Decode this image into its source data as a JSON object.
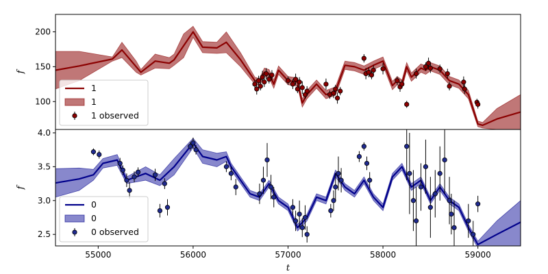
{
  "chart_data": [
    {
      "type": "line",
      "panel": "top",
      "ylabel": "f",
      "xlabel": "",
      "xlim": [
        54550,
        59450
      ],
      "ylim": [
        60,
        225
      ],
      "yticks": [
        100,
        150,
        200
      ],
      "legend_position": "lower-left",
      "colors": {
        "line": "#8b0000",
        "band": "#b05555",
        "points": "#8b0000"
      },
      "legend": [
        "1",
        "1",
        "1 observed"
      ],
      "series": [
        {
          "name": "1",
          "kind": "model",
          "x": [
            54550,
            54800,
            55150,
            55250,
            55400,
            55450,
            55600,
            55750,
            55800,
            55900,
            56000,
            56100,
            56250,
            56350,
            56500,
            56650,
            56700,
            56750,
            56800,
            56850,
            56900,
            57000,
            57100,
            57150,
            57200,
            57300,
            57400,
            57500,
            57600,
            57700,
            57800,
            57900,
            58000,
            58100,
            58150,
            58200,
            58250,
            58300,
            58400,
            58450,
            58500,
            58600,
            58700,
            58800,
            58900,
            59000,
            59050,
            59200,
            59450
          ],
          "y": [
            145,
            151,
            161,
            174,
            150,
            142,
            158,
            155,
            160,
            180,
            200,
            178,
            177,
            185,
            160,
            130,
            128,
            142,
            140,
            125,
            145,
            130,
            128,
            98,
            110,
            125,
            110,
            115,
            152,
            150,
            145,
            152,
            158,
            123,
            130,
            125,
            150,
            135,
            148,
            145,
            150,
            145,
            130,
            125,
            110,
            68,
            66,
            75,
            85
          ]
        },
        {
          "name": "1",
          "kind": "band",
          "x": [
            54550,
            54800,
            55150,
            55250,
            55400,
            55450,
            55600,
            55750,
            55800,
            55900,
            56000,
            56100,
            56250,
            56350,
            56500,
            56650,
            56700,
            56750,
            56800,
            56850,
            56900,
            57000,
            57100,
            57150,
            57200,
            57300,
            57400,
            57500,
            57600,
            57700,
            57800,
            57900,
            58000,
            58100,
            58150,
            58200,
            58250,
            58300,
            58400,
            58450,
            58500,
            58600,
            58700,
            58800,
            58900,
            59000,
            59050,
            59200,
            59450
          ],
          "lower": [
            118,
            130,
            158,
            163,
            142,
            138,
            148,
            147,
            152,
            163,
            192,
            170,
            169,
            170,
            150,
            125,
            123,
            136,
            134,
            119,
            139,
            124,
            122,
            92,
            104,
            119,
            104,
            109,
            146,
            144,
            139,
            146,
            152,
            117,
            124,
            119,
            144,
            129,
            142,
            139,
            144,
            139,
            124,
            119,
            104,
            64,
            62,
            60,
            60
          ],
          "upper": [
            172,
            172,
            164,
            185,
            158,
            146,
            168,
            163,
            168,
            197,
            208,
            186,
            185,
            200,
            170,
            135,
            133,
            148,
            146,
            131,
            151,
            136,
            134,
            104,
            116,
            131,
            116,
            121,
            158,
            156,
            151,
            158,
            164,
            129,
            136,
            131,
            156,
            141,
            154,
            151,
            156,
            151,
            136,
            131,
            116,
            72,
            70,
            90,
            110
          ]
        },
        {
          "name": "1 observed",
          "kind": "observed",
          "x": [
            56650,
            56670,
            56690,
            56710,
            56730,
            56750,
            56770,
            56800,
            56830,
            57000,
            57050,
            57080,
            57100,
            57120,
            57150,
            57180,
            57200,
            57400,
            57440,
            57480,
            57500,
            57520,
            57550,
            57800,
            57820,
            57850,
            57880,
            57900,
            58000,
            58150,
            58180,
            58200,
            58250,
            58350,
            58450,
            58480,
            58500,
            58600,
            58680,
            58700,
            58850,
            58860,
            58990,
            59000
          ],
          "y": [
            125,
            118,
            130,
            122,
            135,
            128,
            140,
            132,
            138,
            130,
            125,
            132,
            118,
            128,
            120,
            110,
            115,
            125,
            110,
            112,
            118,
            105,
            115,
            162,
            140,
            142,
            138,
            145,
            147,
            130,
            121,
            125,
            96,
            140,
            150,
            155,
            148,
            147,
            140,
            122,
            128,
            118,
            99,
            96
          ],
          "yerr": [
            6,
            8,
            7,
            6,
            9,
            7,
            8,
            6,
            7,
            6,
            7,
            8,
            6,
            7,
            9,
            6,
            7,
            8,
            6,
            7,
            6,
            8,
            6,
            6,
            8,
            7,
            6,
            7,
            8,
            6,
            7,
            6,
            5,
            7,
            6,
            8,
            7,
            6,
            7,
            6,
            8,
            7,
            5,
            6
          ]
        }
      ]
    },
    {
      "type": "line",
      "panel": "bottom",
      "ylabel": "f",
      "xlabel": "t",
      "xlim": [
        54550,
        59450
      ],
      "ylim": [
        2.33,
        4.05
      ],
      "yticks": [
        2.5,
        3.0,
        3.5,
        4.0
      ],
      "xticks": [
        55000,
        56000,
        57000,
        58000,
        59000
      ],
      "legend_position": "lower-left",
      "colors": {
        "line": "#00008b",
        "band": "#6a6abf",
        "points": "#1f2a8f"
      },
      "legend": [
        "0",
        "0",
        "0 observed"
      ],
      "series": [
        {
          "name": "0",
          "kind": "model",
          "x": [
            54550,
            54800,
            54950,
            55050,
            55200,
            55300,
            55500,
            55650,
            55800,
            56000,
            56100,
            56250,
            56350,
            56400,
            56500,
            56600,
            56700,
            56800,
            56900,
            57000,
            57100,
            57200,
            57300,
            57400,
            57500,
            57600,
            57700,
            57800,
            57900,
            58000,
            58100,
            58200,
            58300,
            58400,
            58500,
            58600,
            58700,
            58800,
            58900,
            59000,
            59200,
            59450
          ],
          "y": [
            3.26,
            3.32,
            3.38,
            3.55,
            3.6,
            3.3,
            3.4,
            3.3,
            3.5,
            3.85,
            3.65,
            3.6,
            3.65,
            3.5,
            3.3,
            3.1,
            3.05,
            3.25,
            3.0,
            2.9,
            2.6,
            2.75,
            3.05,
            3.0,
            3.4,
            3.2,
            3.1,
            3.3,
            3.05,
            2.9,
            3.35,
            3.5,
            3.2,
            3.3,
            3.0,
            3.2,
            3.0,
            2.9,
            2.6,
            2.35,
            2.5,
            2.68
          ]
        },
        {
          "name": "0",
          "kind": "band",
          "x": [
            54550,
            54800,
            54950,
            55050,
            55200,
            55300,
            55500,
            55650,
            55800,
            56000,
            56100,
            56250,
            56350,
            56400,
            56500,
            56600,
            56700,
            56800,
            56900,
            57000,
            57100,
            57200,
            57300,
            57400,
            57500,
            57600,
            57700,
            57800,
            57900,
            58000,
            58100,
            58200,
            58300,
            58400,
            58500,
            58600,
            58700,
            58800,
            58900,
            59000,
            59200,
            59450
          ],
          "lower": [
            3.05,
            3.15,
            3.3,
            3.48,
            3.52,
            3.25,
            3.3,
            3.22,
            3.38,
            3.78,
            3.55,
            3.5,
            3.58,
            3.45,
            3.25,
            3.05,
            3.0,
            3.2,
            2.95,
            2.85,
            2.55,
            2.7,
            3.0,
            2.95,
            3.35,
            3.15,
            3.05,
            3.25,
            3.0,
            2.85,
            3.3,
            3.45,
            3.15,
            3.25,
            2.95,
            3.15,
            2.95,
            2.85,
            2.55,
            2.3,
            2.33,
            2.33
          ],
          "upper": [
            3.47,
            3.48,
            3.46,
            3.62,
            3.68,
            3.35,
            3.5,
            3.38,
            3.62,
            3.92,
            3.75,
            3.7,
            3.72,
            3.55,
            3.35,
            3.15,
            3.1,
            3.3,
            3.05,
            2.95,
            2.65,
            2.8,
            3.1,
            3.05,
            3.45,
            3.25,
            3.15,
            3.35,
            3.1,
            2.95,
            3.4,
            3.55,
            3.25,
            3.35,
            3.05,
            3.25,
            3.05,
            2.95,
            2.65,
            2.4,
            2.7,
            3.0
          ]
        },
        {
          "name": "0 observed",
          "kind": "observed",
          "x": [
            54950,
            55010,
            55230,
            55260,
            55300,
            55330,
            55380,
            55420,
            55600,
            55650,
            55700,
            55730,
            55970,
            56000,
            56030,
            56350,
            56400,
            56450,
            56700,
            56740,
            56780,
            56820,
            56850,
            57050,
            57080,
            57120,
            57150,
            57180,
            57200,
            57450,
            57480,
            57500,
            57530,
            57560,
            57750,
            57800,
            57830,
            57860,
            58250,
            58280,
            58320,
            58350,
            58400,
            58450,
            58500,
            58550,
            58600,
            58650,
            58700,
            58720,
            58750,
            58900,
            58950,
            59000
          ],
          "y": [
            3.72,
            3.68,
            3.55,
            3.45,
            3.3,
            3.15,
            3.35,
            3.42,
            3.38,
            2.85,
            3.25,
            2.9,
            3.8,
            3.85,
            3.75,
            3.5,
            3.4,
            3.2,
            3.1,
            3.3,
            3.6,
            3.2,
            3.05,
            2.9,
            2.7,
            2.8,
            2.6,
            2.75,
            2.5,
            2.85,
            3.0,
            3.2,
            3.4,
            3.3,
            3.65,
            3.8,
            3.55,
            3.3,
            3.8,
            3.4,
            3.0,
            2.7,
            3.2,
            3.5,
            2.9,
            3.1,
            3.4,
            3.6,
            3.0,
            2.8,
            2.6,
            2.7,
            2.5,
            2.95
          ],
          "yerr": [
            0.05,
            0.06,
            0.08,
            0.07,
            0.1,
            0.12,
            0.08,
            0.07,
            0.09,
            0.1,
            0.08,
            0.12,
            0.06,
            0.08,
            0.07,
            0.08,
            0.1,
            0.12,
            0.15,
            0.2,
            0.25,
            0.18,
            0.15,
            0.12,
            0.15,
            0.2,
            0.14,
            0.18,
            0.12,
            0.1,
            0.15,
            0.2,
            0.25,
            0.18,
            0.08,
            0.06,
            0.1,
            0.12,
            0.5,
            0.6,
            0.45,
            0.5,
            0.35,
            0.4,
            0.45,
            0.35,
            0.4,
            0.5,
            0.35,
            0.3,
            0.4,
            0.25,
            0.2,
            0.12
          ]
        }
      ]
    }
  ]
}
